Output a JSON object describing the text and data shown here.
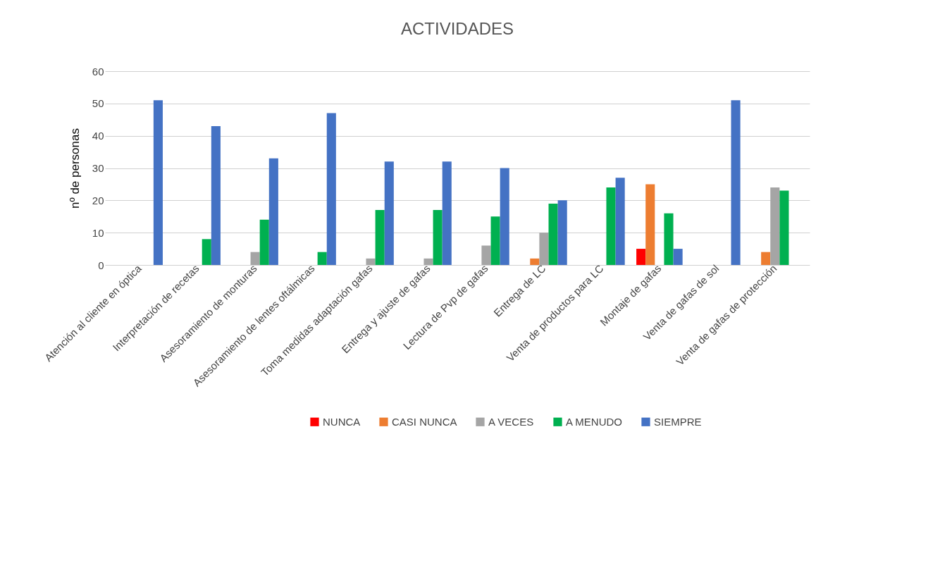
{
  "chart_data": {
    "type": "bar",
    "title": "ACTIVIDADES",
    "ylabel": "nº de personas",
    "categories": [
      "Atención al cliente en óptica",
      "Interpretación de recetas",
      "Asesoramiento de monturas",
      "Asesoramiento de lentes oftálmicas",
      "Toma medidas adaptación gafas",
      "Entrega y ajuste de gafas",
      "Lectura de Pvp de gafas",
      "Entrega de LC",
      "Venta de productos para LC",
      "Montaje de gafas",
      "Venta de gafas de sol",
      "Venta de gafas de protección"
    ],
    "series": [
      {
        "name": "NUNCA",
        "color": "#ff0000",
        "values": [
          0,
          0,
          0,
          0,
          0,
          0,
          0,
          0,
          0,
          5,
          0,
          0
        ]
      },
      {
        "name": "CASI NUNCA",
        "color": "#ed7d31",
        "values": [
          0,
          0,
          0,
          0,
          0,
          0,
          0,
          2,
          0,
          25,
          0,
          4
        ]
      },
      {
        "name": "A VECES",
        "color": "#a5a5a5",
        "values": [
          0,
          0,
          4,
          0,
          2,
          2,
          6,
          10,
          0,
          0,
          0,
          24
        ]
      },
      {
        "name": "A MENUDO",
        "color": "#00b050",
        "values": [
          0,
          8,
          14,
          4,
          17,
          17,
          15,
          19,
          24,
          16,
          0,
          23
        ]
      },
      {
        "name": "SIEMPRE",
        "color": "#4472c4",
        "values": [
          51,
          43,
          33,
          47,
          32,
          32,
          30,
          20,
          27,
          5,
          51,
          0
        ]
      }
    ],
    "ylim": [
      0,
      60
    ],
    "yticks": [
      0,
      10,
      20,
      30,
      40,
      50,
      60
    ],
    "grid": "y",
    "legend": "bottom"
  }
}
